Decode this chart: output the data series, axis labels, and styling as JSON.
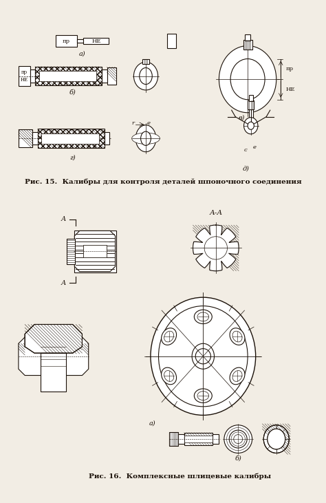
{
  "background_color": "#f2ede4",
  "fig_width": 4.74,
  "fig_height": 7.31,
  "fig15_caption": "Рис. 15.  Калибры для контроля деталей шпоночного соединения",
  "fig16_caption": "Рис. 16.  Комплексные шлицевые калибры",
  "line_color": "#1a1008",
  "label_a": "а)",
  "label_b": "б)",
  "label_v": "в)",
  "label_g": "г)",
  "label_d": "д)",
  "label_a16": "а)",
  "label_b16": "б)",
  "text_PR": "пр",
  "text_HE": "НЕ",
  "text_AA": "А-А",
  "text_A": "А"
}
